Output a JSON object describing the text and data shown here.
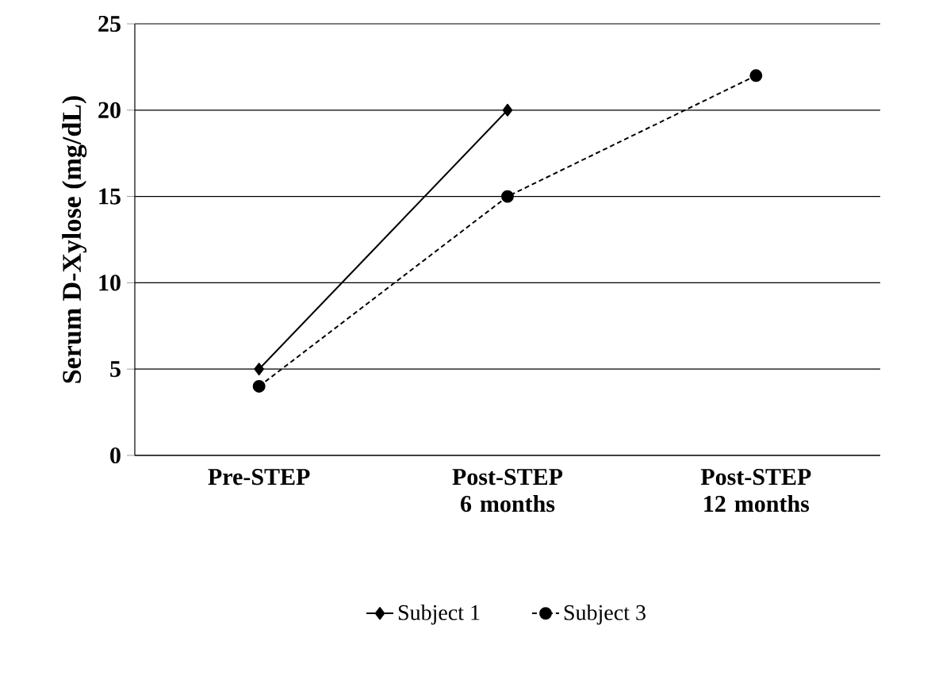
{
  "chart_data": {
    "type": "line",
    "ylabel": "Serum D-Xylose (mg/dL)",
    "categories": [
      "Pre-STEP",
      "Post-STEP 6 months",
      "Post-STEP 12 months"
    ],
    "series": [
      {
        "name": "Subject 1",
        "color": "#000000",
        "values": [
          5,
          20,
          null
        ],
        "marker": "diamond",
        "line_style": "solid"
      },
      {
        "name": "Subject 3",
        "color": "#000000",
        "values": [
          4,
          15,
          22
        ],
        "marker": "circle",
        "line_style": "dashed"
      }
    ],
    "ylim": [
      0,
      25
    ],
    "yticks": [
      0,
      5,
      10,
      15,
      20,
      25
    ],
    "grid": "y",
    "legend": "bottom"
  }
}
